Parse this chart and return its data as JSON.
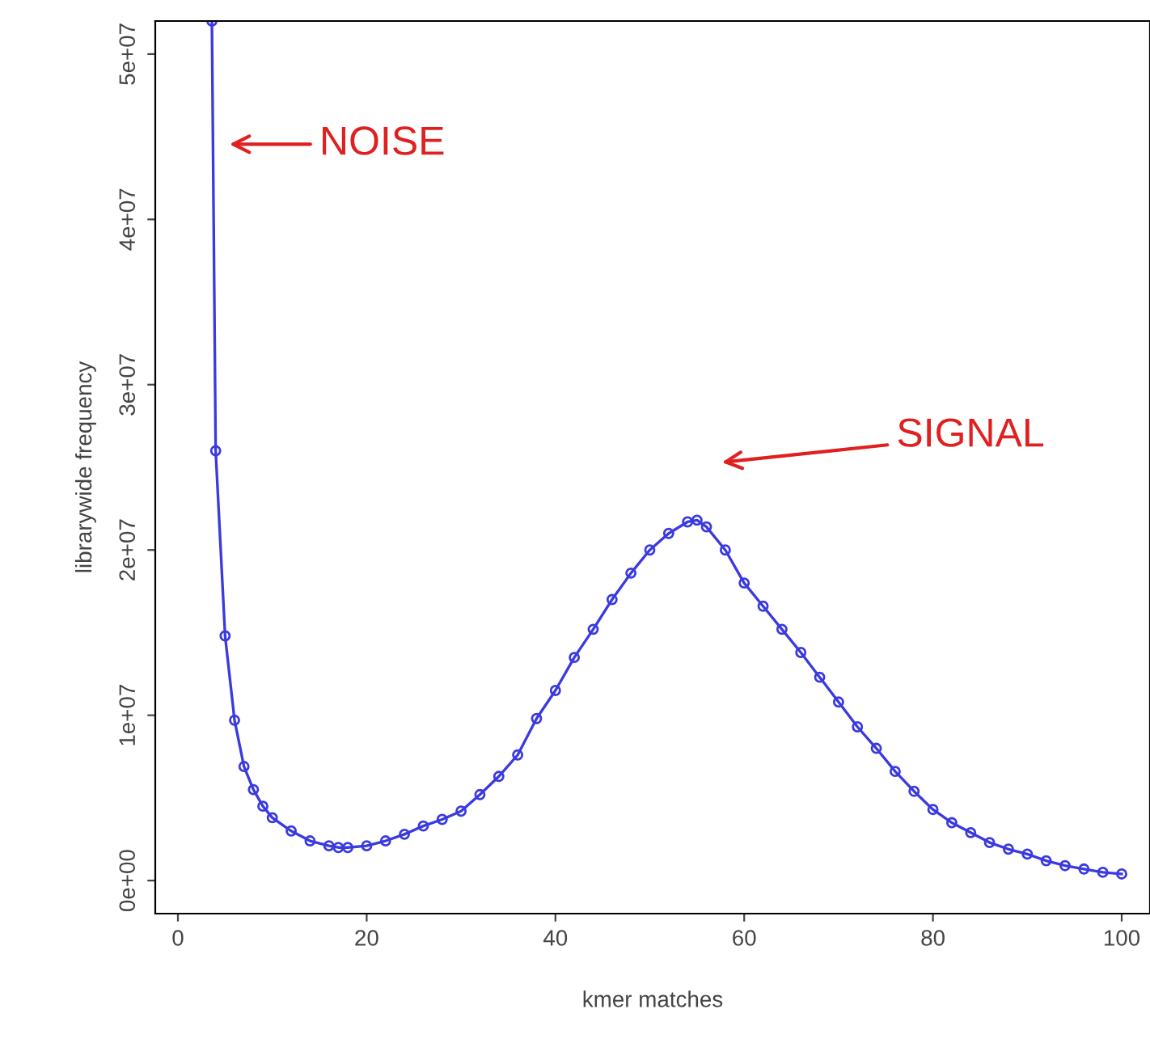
{
  "chart_data": {
    "type": "line",
    "xlabel": "kmer matches",
    "ylabel": "librarywide frequency",
    "x": [
      3.6,
      4,
      5,
      6,
      7,
      8,
      9,
      10,
      12,
      14,
      16,
      17,
      18,
      20,
      22,
      24,
      26,
      28,
      30,
      32,
      34,
      36,
      38,
      40,
      42,
      44,
      46,
      48,
      50,
      52,
      54,
      55,
      56,
      58,
      60,
      62,
      64,
      66,
      68,
      70,
      72,
      74,
      76,
      78,
      80,
      82,
      84,
      86,
      88,
      90,
      92,
      94,
      96,
      98,
      100
    ],
    "series": [
      {
        "color": "#3a3ae0",
        "values": [
          52000000,
          26000000,
          14800000,
          9700000,
          6900000,
          5500000,
          4500000,
          3800000,
          3000000,
          2400000,
          2100000,
          2000000,
          2000000,
          2100000,
          2400000,
          2800000,
          3300000,
          3700000,
          4200000,
          5200000,
          6300000,
          7600000,
          9800000,
          11500000,
          13500000,
          15200000,
          17000000,
          18600000,
          20000000,
          21000000,
          21700000,
          21800000,
          21400000,
          20000000,
          18000000,
          16600000,
          15200000,
          13800000,
          12300000,
          10800000,
          9300000,
          8000000,
          6600000,
          5400000,
          4300000,
          3500000,
          2900000,
          2300000,
          1900000,
          1600000,
          1200000,
          900000,
          700000,
          500000,
          400000
        ]
      }
    ],
    "xlim": [
      -2.4,
      103
    ],
    "ylim": [
      -2000000,
      52000000
    ],
    "xticks": [
      0,
      20,
      40,
      60,
      80,
      100
    ],
    "yticks": [
      {
        "value": 0,
        "label": "0e+00"
      },
      {
        "value": 10000000,
        "label": "1e+07"
      },
      {
        "value": 20000000,
        "label": "2e+07"
      },
      {
        "value": 30000000,
        "label": "3e+07"
      },
      {
        "value": 40000000,
        "label": "4e+07"
      },
      {
        "value": 50000000,
        "label": "5e+07"
      }
    ],
    "marker": "circle",
    "grid": false,
    "legend": false,
    "annotations": [
      "NOISE",
      "SIGNAL"
    ]
  }
}
